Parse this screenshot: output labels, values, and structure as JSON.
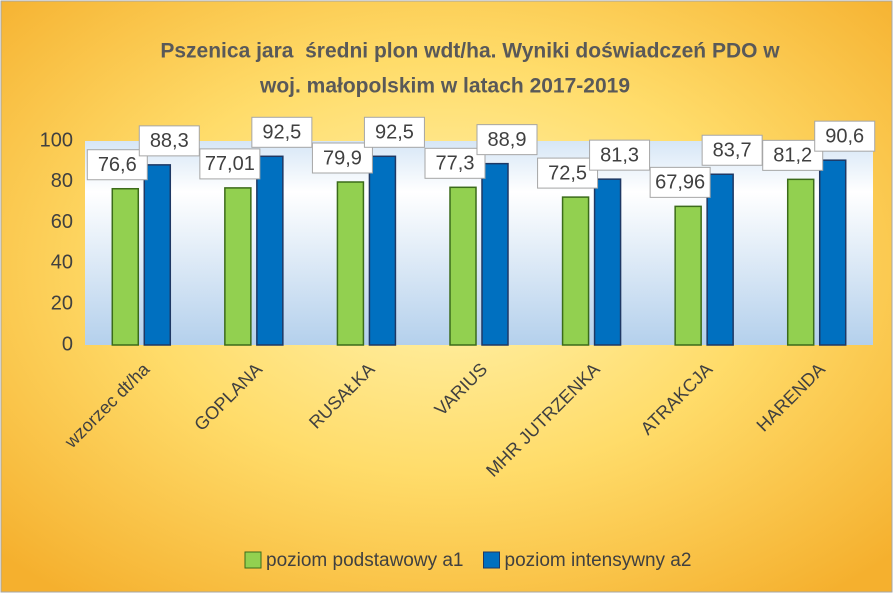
{
  "chart_data": {
    "type": "bar",
    "title": [
      "Pszenica jara  średni plon wdt/ha. Wyniki doświadczeń PDO w",
      "woj. małopolskim w latach 2017-2019"
    ],
    "categories": [
      "wzorzec dt/ha",
      "GOPLANA",
      "RUSAŁKA",
      "VARIUS",
      "MHR JUTRZENKA",
      "ATRAKCJA",
      "HARENDA"
    ],
    "series": [
      {
        "name": "poziom podstawowy a1",
        "color": "#92d050",
        "values": [
          76.6,
          77.01,
          79.9,
          77.3,
          72.5,
          67.96,
          81.2
        ],
        "value_labels": [
          "76,6",
          "77,01",
          "79,9",
          "77,3",
          "72,5",
          "67,96",
          "81,2"
        ]
      },
      {
        "name": "poziom intensywny a2",
        "color": "#0070c0",
        "values": [
          88.3,
          92.5,
          92.5,
          88.9,
          81.3,
          83.7,
          90.6
        ],
        "value_labels": [
          "88,3",
          "92,5",
          "92,5",
          "88,9",
          "81,3",
          "83,7",
          "90,6"
        ]
      }
    ],
    "ylim": [
      0,
      100
    ],
    "yticks": [
      0,
      20,
      40,
      60,
      80,
      100
    ],
    "grid": false,
    "legend": "bottom"
  }
}
